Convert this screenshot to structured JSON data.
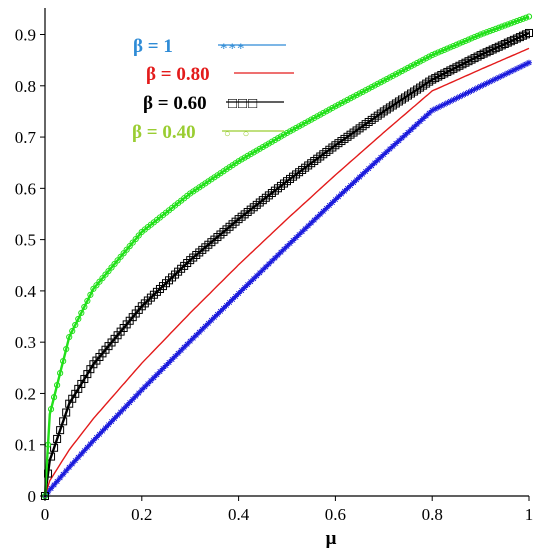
{
  "chart_data": {
    "type": "line",
    "title": "",
    "xlabel": "μ",
    "ylabel": "",
    "xlim": [
      0,
      1
    ],
    "ylim": [
      0,
      0.94
    ],
    "xticks": [
      "0",
      "0.2",
      "0.4",
      "0.6",
      "0.8",
      "1"
    ],
    "xtick_values": [
      0,
      0.2,
      0.4,
      0.6,
      0.8,
      1
    ],
    "yticks": [
      "0",
      "0.1",
      "0.2",
      "0.3",
      "0.4",
      "0.5",
      "0.6",
      "0.7",
      "0.8",
      "0.9"
    ],
    "ytick_values": [
      0,
      0.1,
      0.2,
      0.3,
      0.4,
      0.5,
      0.6,
      0.7,
      0.8,
      0.9
    ],
    "grid": false,
    "legend_position": "top-center",
    "x": [
      0,
      0.01,
      0.05,
      0.1,
      0.2,
      0.3,
      0.4,
      0.5,
      0.6,
      0.7,
      0.8,
      0.9,
      1.0
    ],
    "series": [
      {
        "name": "β = 1",
        "legend_symbol": "***",
        "color": "#1a1adc",
        "legend_color": "#2e8bd6",
        "marker": "star",
        "values": [
          0,
          0.012,
          0.056,
          0.108,
          0.207,
          0.302,
          0.395,
          0.487,
          0.578,
          0.666,
          0.752,
          0.799,
          0.845
        ]
      },
      {
        "name": "β = 0.80",
        "color": "#e31b1b",
        "legend_color": "#e31b1b",
        "marker": "none",
        "values": [
          0,
          0.03,
          0.09,
          0.151,
          0.259,
          0.357,
          0.451,
          0.54,
          0.626,
          0.709,
          0.79,
          0.832,
          0.873
        ]
      },
      {
        "name": "β = 0.60",
        "legend_symbol": "□□□",
        "color": "#000000",
        "legend_color": "#000000",
        "marker": "square",
        "values": [
          0,
          0.07,
          0.18,
          0.257,
          0.37,
          0.46,
          0.54,
          0.614,
          0.684,
          0.75,
          0.812,
          0.86,
          0.903
        ]
      },
      {
        "name": "β = 0.40",
        "legend_symbol": "○○",
        "color": "#22e01a",
        "legend_color": "#9acd32",
        "marker": "circle",
        "values": [
          0,
          0.16,
          0.31,
          0.404,
          0.515,
          0.59,
          0.653,
          0.708,
          0.76,
          0.81,
          0.86,
          0.9,
          0.935
        ]
      }
    ]
  }
}
